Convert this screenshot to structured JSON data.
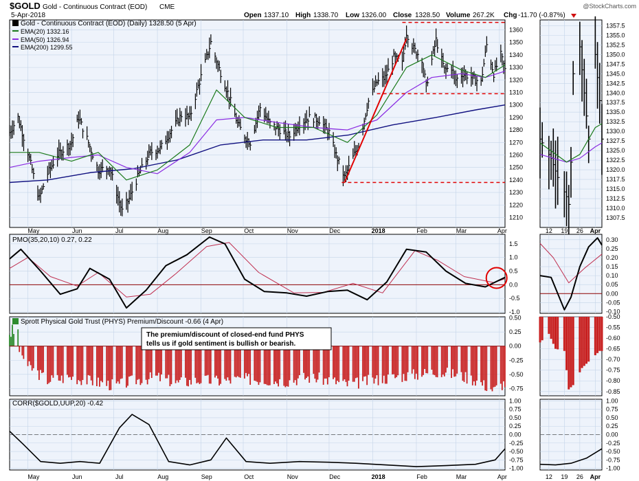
{
  "header": {
    "symbol": "$GOLD",
    "name": "Gold - Continuous Contract (EOD)",
    "exchange": "CME",
    "date": "5-Apr-2018",
    "open_label": "Open",
    "open": "1337.10",
    "high_label": "High",
    "high": "1338.70",
    "low_label": "Low",
    "low": "1326.00",
    "close_label": "Close",
    "close": "1328.50",
    "volume_label": "Volume",
    "volume": "267.2K",
    "chg_label": "Chg",
    "chg": "-11.70 (-0.87%)",
    "watermark": "@StockCharts.com"
  },
  "colors": {
    "panel_bg": "#eef3fb",
    "grid": "#c4d4e8",
    "price": "#000000",
    "ema20": "#1b7a1b",
    "ema50": "#8a2be2",
    "ema200": "#101080",
    "signal": "#c03050",
    "hist_neg": "#c82020",
    "hist_pos": "#2e8b2e",
    "annotation_red": "#e00000"
  },
  "chart_data": [
    {
      "type": "line",
      "panel": "price",
      "title": "Gold - Continuous Contract (EOD) (Daily) 1328.50 (5 Apr)",
      "legend": [
        "EMA(20) 1332.16",
        "EMA(50) 1326.94",
        "EMA(200) 1299.55"
      ],
      "x_ticks": [
        "May",
        "Jun",
        "Jul",
        "Aug",
        "Sep",
        "Oct",
        "Nov",
        "Dec",
        "2018",
        "Feb",
        "Mar",
        "Apr"
      ],
      "y_ticks": [
        1210,
        1220,
        1230,
        1240,
        1250,
        1260,
        1270,
        1280,
        1290,
        1300,
        1310,
        1320,
        1330,
        1340,
        1350,
        1360
      ],
      "ylim": [
        1202,
        1368
      ],
      "x_range": [
        "2017-04-18",
        "2018-04-05"
      ],
      "series": [
        {
          "name": "Price",
          "x": [
            "2017-04-18",
            "2017-04-24",
            "2017-05-01",
            "2017-05-09",
            "2017-05-15",
            "2017-05-22",
            "2017-06-01",
            "2017-06-06",
            "2017-06-12",
            "2017-06-20",
            "2017-06-28",
            "2017-07-03",
            "2017-07-07",
            "2017-07-12",
            "2017-07-19",
            "2017-07-27",
            "2017-08-03",
            "2017-08-10",
            "2017-08-18",
            "2017-08-24",
            "2017-08-30",
            "2017-09-05",
            "2017-09-08",
            "2017-09-13",
            "2017-09-20",
            "2017-09-27",
            "2017-10-02",
            "2017-10-06",
            "2017-10-13",
            "2017-10-20",
            "2017-10-27",
            "2017-11-03",
            "2017-11-10",
            "2017-11-17",
            "2017-11-24",
            "2017-12-01",
            "2017-12-06",
            "2017-12-12",
            "2017-12-18",
            "2017-12-22",
            "2017-12-29",
            "2018-01-04",
            "2018-01-10",
            "2018-01-16",
            "2018-01-22",
            "2018-01-25",
            "2018-01-30",
            "2018-02-05",
            "2018-02-08",
            "2018-02-15",
            "2018-02-21",
            "2018-02-26",
            "2018-03-01",
            "2018-03-06",
            "2018-03-12",
            "2018-03-19",
            "2018-03-23",
            "2018-03-28",
            "2018-04-02",
            "2018-04-05"
          ],
          "values": [
            1278,
            1290,
            1262,
            1225,
            1245,
            1260,
            1270,
            1290,
            1273,
            1248,
            1250,
            1230,
            1215,
            1225,
            1245,
            1262,
            1265,
            1278,
            1292,
            1290,
            1315,
            1338,
            1350,
            1332,
            1310,
            1285,
            1275,
            1270,
            1298,
            1285,
            1280,
            1275,
            1285,
            1290,
            1288,
            1278,
            1260,
            1242,
            1258,
            1268,
            1303,
            1318,
            1322,
            1338,
            1333,
            1358,
            1345,
            1337,
            1315,
            1352,
            1328,
            1330,
            1320,
            1325,
            1322,
            1318,
            1348,
            1325,
            1340,
            1328
          ]
        },
        {
          "name": "EMA(20)",
          "x": [
            "2017-04-18",
            "2017-05-09",
            "2017-06-01",
            "2017-06-20",
            "2017-07-10",
            "2017-08-01",
            "2017-08-24",
            "2017-09-12",
            "2017-10-02",
            "2017-10-25",
            "2017-11-20",
            "2017-12-14",
            "2018-01-04",
            "2018-01-25",
            "2018-02-12",
            "2018-03-05",
            "2018-03-22",
            "2018-04-05"
          ],
          "values": [
            1262,
            1262,
            1255,
            1262,
            1240,
            1248,
            1268,
            1312,
            1290,
            1282,
            1282,
            1270,
            1292,
            1330,
            1340,
            1328,
            1322,
            1332
          ]
        },
        {
          "name": "EMA(50)",
          "x": [
            "2017-04-18",
            "2017-05-09",
            "2017-06-01",
            "2017-06-20",
            "2017-07-10",
            "2017-08-01",
            "2017-08-24",
            "2017-09-12",
            "2017-10-02",
            "2017-10-25",
            "2017-11-20",
            "2017-12-14",
            "2018-01-04",
            "2018-01-25",
            "2018-02-12",
            "2018-03-05",
            "2018-03-22",
            "2018-04-05"
          ],
          "values": [
            1250,
            1255,
            1258,
            1260,
            1250,
            1245,
            1262,
            1288,
            1290,
            1286,
            1282,
            1280,
            1288,
            1310,
            1322,
            1325,
            1322,
            1327
          ]
        },
        {
          "name": "EMA(200)",
          "x": [
            "2017-04-18",
            "2017-05-15",
            "2017-06-15",
            "2017-07-15",
            "2017-08-15",
            "2017-09-15",
            "2017-10-15",
            "2017-11-15",
            "2017-12-15",
            "2018-01-15",
            "2018-02-15",
            "2018-03-15",
            "2018-04-05"
          ],
          "values": [
            1238,
            1240,
            1246,
            1249,
            1256,
            1268,
            1272,
            1272,
            1276,
            1284,
            1290,
            1296,
            1300
          ]
        }
      ],
      "annotations": {
        "top_line": 1366,
        "mid_line": 1309,
        "bottom_line": 1238,
        "trendline": [
          [
            "2017-12-12",
            1238
          ],
          [
            "2018-01-25",
            1353
          ]
        ]
      }
    },
    {
      "type": "line",
      "panel": "pmo",
      "title": "PMO(35,20,10) 0.27, 0.22",
      "y_ticks": [
        -1.0,
        -0.5,
        0.0,
        0.5,
        1.0,
        1.5
      ],
      "ylim": [
        -1.05,
        1.85
      ],
      "series": [
        {
          "name": "PMO",
          "x": [
            "2017-04-18",
            "2017-04-26",
            "2017-05-10",
            "2017-05-24",
            "2017-06-05",
            "2017-06-14",
            "2017-06-28",
            "2017-07-10",
            "2017-07-24",
            "2017-08-07",
            "2017-08-22",
            "2017-09-07",
            "2017-09-18",
            "2017-10-02",
            "2017-10-16",
            "2017-11-01",
            "2017-11-15",
            "2017-11-30",
            "2017-12-14",
            "2017-12-28",
            "2018-01-11",
            "2018-01-25",
            "2018-02-08",
            "2018-02-22",
            "2018-03-08",
            "2018-03-22",
            "2018-04-05"
          ],
          "values": [
            0.95,
            1.3,
            0.5,
            -0.35,
            -0.15,
            0.6,
            0.2,
            -0.85,
            -0.2,
            0.7,
            1.1,
            1.75,
            1.5,
            0.2,
            -0.25,
            -0.3,
            -0.42,
            -0.25,
            -0.2,
            -0.55,
            0.1,
            1.3,
            1.2,
            0.5,
            0.05,
            -0.08,
            0.27
          ]
        },
        {
          "name": "Signal",
          "x": [
            "2017-04-18",
            "2017-05-01",
            "2017-05-17",
            "2017-06-05",
            "2017-06-20",
            "2017-07-10",
            "2017-07-27",
            "2017-08-14",
            "2017-09-05",
            "2017-09-21",
            "2017-10-12",
            "2017-11-06",
            "2017-11-27",
            "2017-12-18",
            "2018-01-08",
            "2018-01-31",
            "2018-02-16",
            "2018-03-07",
            "2018-03-28",
            "2018-04-05"
          ],
          "values": [
            0.6,
            1.0,
            0.3,
            -0.05,
            0.45,
            -0.45,
            -0.35,
            0.4,
            1.4,
            1.55,
            0.45,
            -0.3,
            -0.28,
            0.05,
            -0.3,
            1.25,
            0.9,
            0.3,
            0.08,
            0.22
          ]
        }
      ]
    },
    {
      "type": "bar",
      "panel": "phys",
      "title": "Sprott Physical Gold Trust (PHYS) Premium/Discount -0.66 (4 Apr)",
      "annotation": [
        "The premium/discount of closed-end fund PHYS",
        "tells us if gold sentiment is bullish or bearish."
      ],
      "y_ticks": [
        -0.75,
        -0.5,
        -0.25,
        0.0,
        0.25,
        0.5
      ],
      "ylim": [
        -0.88,
        0.52
      ],
      "x": [
        "2017-04-18",
        "2017-05-01",
        "2017-05-15",
        "2017-06-01",
        "2017-06-15",
        "2017-07-03",
        "2017-07-17",
        "2017-08-01",
        "2017-08-15",
        "2017-09-01",
        "2017-09-15",
        "2017-10-02",
        "2017-10-16",
        "2017-11-01",
        "2017-11-15",
        "2017-12-01",
        "2017-12-15",
        "2018-01-02",
        "2018-01-16",
        "2018-02-01",
        "2018-02-15",
        "2018-03-01",
        "2018-03-15",
        "2018-03-28",
        "2018-04-04"
      ],
      "values": [
        0.3,
        -0.35,
        -0.6,
        -0.55,
        -0.62,
        -0.7,
        -0.6,
        -0.55,
        -0.65,
        -0.6,
        -0.62,
        -0.58,
        -0.6,
        -0.62,
        -0.55,
        -0.6,
        -0.68,
        -0.6,
        -0.55,
        -0.5,
        -0.45,
        -0.5,
        -0.6,
        -0.78,
        -0.66
      ]
    },
    {
      "type": "line",
      "panel": "corr",
      "title": "CORR($GOLD,UUP,20) -0.42",
      "y_ticks": [
        -1.0,
        -0.75,
        -0.5,
        -0.25,
        0.0,
        0.25,
        0.5,
        0.75,
        1.0
      ],
      "ylim": [
        -1.05,
        1.05
      ],
      "series": [
        {
          "name": "CORR",
          "x": [
            "2017-04-18",
            "2017-04-28",
            "2017-05-10",
            "2017-05-24",
            "2017-06-07",
            "2017-06-21",
            "2017-07-05",
            "2017-07-14",
            "2017-07-26",
            "2017-08-09",
            "2017-08-24",
            "2017-09-08",
            "2017-09-19",
            "2017-10-03",
            "2017-10-20",
            "2017-11-10",
            "2017-12-01",
            "2017-12-20",
            "2018-01-10",
            "2018-02-01",
            "2018-02-22",
            "2018-03-15",
            "2018-03-29",
            "2018-04-05"
          ],
          "values": [
            0.1,
            -0.3,
            -0.8,
            -0.85,
            -0.8,
            -0.85,
            0.2,
            0.6,
            0.3,
            -0.8,
            -0.9,
            -0.75,
            -0.1,
            -0.8,
            -0.85,
            -0.8,
            -0.82,
            -0.85,
            -0.9,
            -0.95,
            -0.92,
            -0.88,
            -0.75,
            -0.42
          ]
        }
      ]
    }
  ],
  "zoom": {
    "x_ticks": [
      "12",
      "19",
      "26",
      "Apr"
    ],
    "price_y_ticks": [
      1307.5,
      1310,
      1312.5,
      1315,
      1317.5,
      1320,
      1322.5,
      1325,
      1327.5,
      1330,
      1332.5,
      1335,
      1337.5,
      1340,
      1342.5,
      1345,
      1347.5,
      1350,
      1352.5,
      1355,
      1357.5
    ],
    "price_ylim": [
      1305,
      1359
    ],
    "pmo_y_ticks": [
      -0.1,
      -0.05,
      0.0,
      0.05,
      0.1,
      0.15,
      0.2,
      0.25,
      0.3
    ],
    "pmo_ylim": [
      -0.11,
      0.33
    ],
    "phys_y_ticks": [
      -0.85,
      -0.8,
      -0.75,
      -0.7,
      -0.65,
      -0.6,
      -0.55,
      -0.5
    ],
    "phys_ylim": [
      -0.87,
      -0.5
    ],
    "corr_y_ticks": [
      -1.0,
      -0.75,
      -0.5,
      -0.25,
      0.0,
      0.25,
      0.5,
      0.75,
      1.0
    ],
    "corr_ylim": [
      -1.05,
      1.05
    ],
    "x_range": [
      "2018-03-08",
      "2018-04-05"
    ],
    "price": {
      "x": [
        "2018-03-08",
        "2018-03-13",
        "2018-03-16",
        "2018-03-20",
        "2018-03-21",
        "2018-03-22",
        "2018-03-23",
        "2018-03-26",
        "2018-03-28",
        "2018-03-30",
        "2018-04-02",
        "2018-04-04",
        "2018-04-05"
      ],
      "values": [
        1328,
        1323,
        1318,
        1313,
        1311,
        1322,
        1345,
        1352,
        1340,
        1328,
        1350,
        1338,
        1328
      ]
    },
    "ema20": {
      "x": [
        "2018-03-08",
        "2018-03-20",
        "2018-03-26",
        "2018-04-02",
        "2018-04-05"
      ],
      "values": [
        1327,
        1322,
        1324,
        1331,
        1332
      ]
    },
    "ema50": {
      "x": [
        "2018-03-08",
        "2018-03-20",
        "2018-03-26",
        "2018-04-02",
        "2018-04-05"
      ],
      "values": [
        1324,
        1322,
        1323,
        1326,
        1327
      ]
    },
    "pmo": {
      "x": [
        "2018-03-08",
        "2018-03-13",
        "2018-03-19",
        "2018-03-22",
        "2018-03-26",
        "2018-03-30",
        "2018-04-03",
        "2018-04-05"
      ],
      "values": [
        0.1,
        0.09,
        -0.09,
        -0.02,
        0.15,
        0.26,
        0.31,
        0.27
      ]
    },
    "signal": {
      "x": [
        "2018-03-08",
        "2018-03-14",
        "2018-03-21",
        "2018-03-28",
        "2018-04-05"
      ],
      "values": [
        0.28,
        0.2,
        0.06,
        0.14,
        0.22
      ]
    },
    "phys": {
      "x": [
        "2018-03-08",
        "2018-03-12",
        "2018-03-15",
        "2018-03-19",
        "2018-03-21",
        "2018-03-23",
        "2018-03-27",
        "2018-03-29",
        "2018-04-02",
        "2018-04-04"
      ],
      "values": [
        -0.62,
        -0.58,
        -0.65,
        -0.66,
        -0.84,
        -0.82,
        -0.74,
        -0.72,
        -0.68,
        -0.66
      ]
    },
    "corr": {
      "x": [
        "2018-03-08",
        "2018-03-15",
        "2018-03-22",
        "2018-03-29",
        "2018-04-05"
      ],
      "values": [
        -0.88,
        -0.9,
        -0.85,
        -0.7,
        -0.42
      ]
    }
  }
}
